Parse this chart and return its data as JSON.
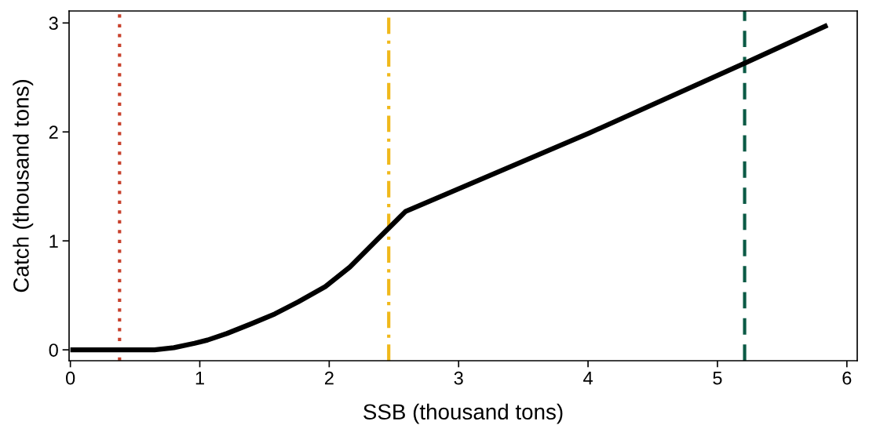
{
  "chart_data": {
    "type": "line",
    "xlabel": "SSB (thousand tons)",
    "ylabel": "Catch (thousand tons)",
    "series": [
      {
        "color": "#000000",
        "x": [
          0,
          0.65,
          0.8,
          0.96,
          1.06,
          1.21,
          1.4,
          1.58,
          1.76,
          1.97,
          2.16,
          2.37,
          2.59,
          4.01,
          5.21,
          5.85
        ],
        "values": [
          0,
          0,
          0.02,
          0.06,
          0.09,
          0.15,
          0.24,
          0.33,
          0.44,
          0.58,
          0.76,
          1.01,
          1.27,
          1.99,
          2.63,
          2.98
        ]
      }
    ],
    "xlim": [
      -0.01,
      6.08
    ],
    "ylim": [
      -0.1,
      3.11
    ],
    "xticks": [
      0,
      1,
      2,
      3,
      4,
      5,
      6
    ],
    "yticks": [
      0,
      1,
      2,
      3
    ],
    "ref_lines": [
      {
        "axis": "x",
        "value": 0.38,
        "color": "#c8412c",
        "line_style": "dotted"
      },
      {
        "axis": "x",
        "value": 2.46,
        "color": "#f0b81a",
        "line_style": "dashdot"
      },
      {
        "axis": "x",
        "value": 5.21,
        "color": "#0b5a45",
        "line_style": "dashed"
      }
    ],
    "grid": false,
    "legend": false,
    "marker": "none",
    "line_style": "solid"
  }
}
